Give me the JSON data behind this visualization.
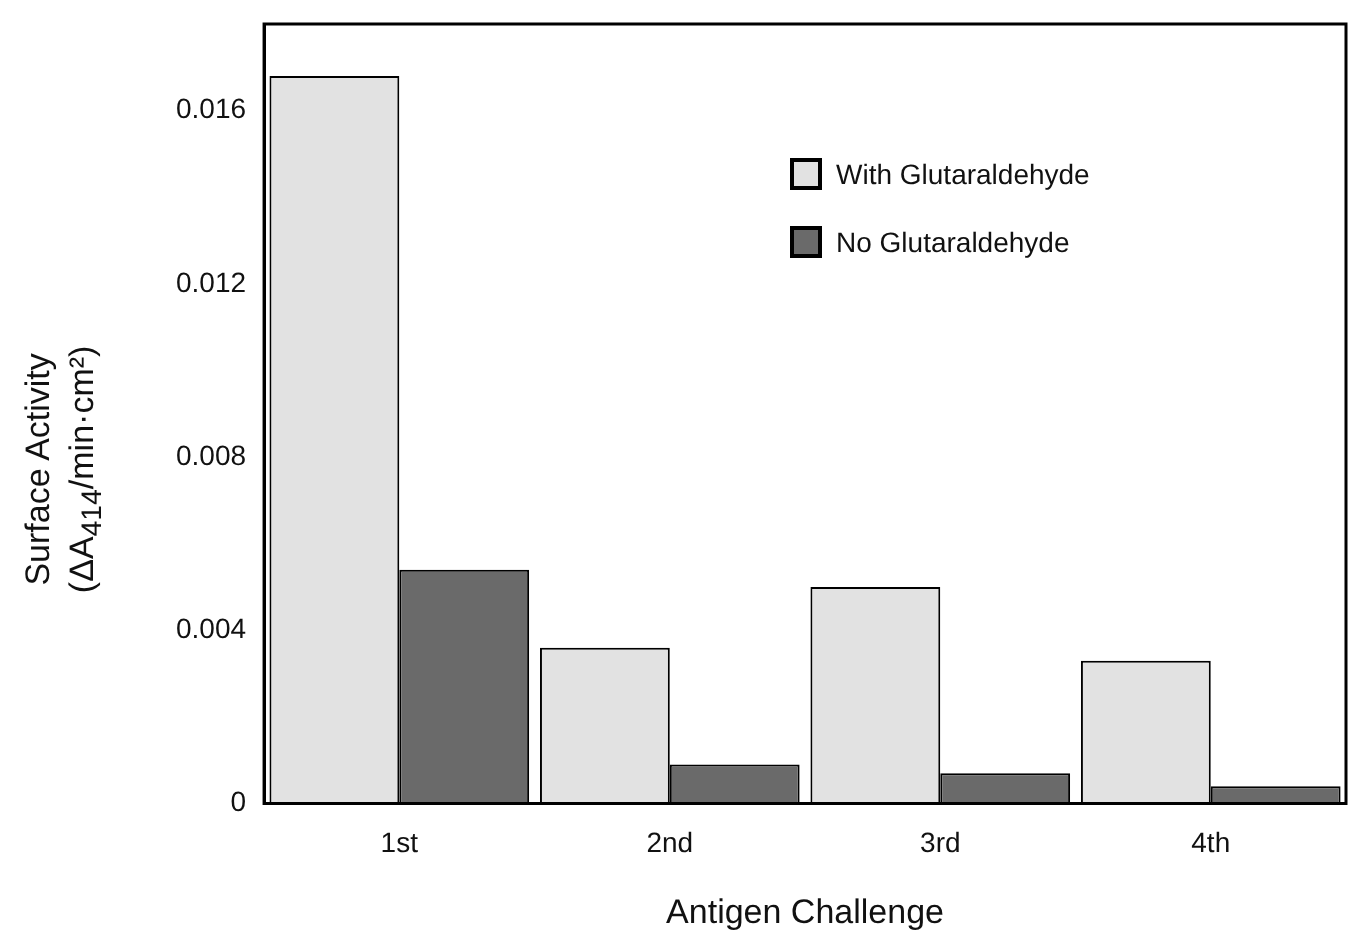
{
  "chart_data": {
    "type": "bar",
    "xlabel": "Antigen Challenge",
    "ylabel": "Surface Activity\n(ΔA$_{414}$/min·cm²)",
    "categories": [
      "1st",
      "2nd",
      "3rd",
      "4th"
    ],
    "series": [
      {
        "name": "With Glutaraldehyde",
        "color": "#e2e2e2",
        "values": [
          0.0168,
          0.0036,
          0.005,
          0.0033
        ]
      },
      {
        "name": "No Glutaraldehyde",
        "color": "#6a6a6a",
        "values": [
          0.0054,
          0.0009,
          0.0007,
          0.0004
        ]
      }
    ],
    "ylim": [
      0,
      0.018
    ],
    "yticks": [
      0,
      0.004,
      0.008,
      0.012,
      0.016
    ],
    "grid": false,
    "legend": "top right"
  }
}
